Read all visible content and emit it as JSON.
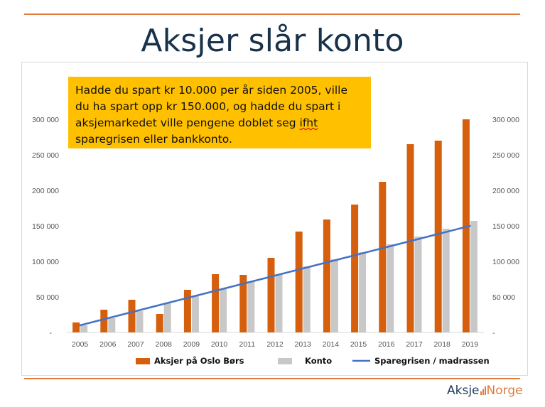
{
  "page": {
    "title": "Aksjer slår konto",
    "callout_parts": [
      "Hadde du spart kr 10.000 per år siden 2005, ville du ha spart opp kr 150.000, og hadde du spart i aksjemarkedet ville pengene doblet seg ",
      "ifht",
      " sparegrisen eller bankkonto."
    ],
    "logo": {
      "left": "Aksje",
      "right": "Norge"
    },
    "colors": {
      "accent": "#e07b3c",
      "title": "#17324a",
      "callout_bg": "#ffc000"
    }
  },
  "chart_data": {
    "type": "bar",
    "categories": [
      "2005",
      "2006",
      "2007",
      "2008",
      "2009",
      "2010",
      "2011",
      "2012",
      "2013",
      "2014",
      "2015",
      "2016",
      "2017",
      "2018",
      "2019"
    ],
    "series": [
      {
        "name": "Aksjer på Oslo Børs",
        "type": "bar",
        "color": "#d55f0c",
        "values": [
          14000,
          32000,
          46000,
          26000,
          60000,
          82000,
          81000,
          105000,
          142000,
          159000,
          180000,
          212000,
          265000,
          270000,
          300000
        ]
      },
      {
        "name": "Konto",
        "type": "bar",
        "color": "#c8c8c8",
        "values": [
          10000,
          20000,
          30000,
          41000,
          51000,
          61000,
          72000,
          82000,
          93000,
          103000,
          113000,
          124000,
          135000,
          146000,
          157000
        ]
      },
      {
        "name": "Sparegrisen / madrassen",
        "type": "line",
        "color": "#4472c4",
        "values": [
          10000,
          20000,
          30000,
          40000,
          50000,
          60000,
          70000,
          80000,
          90000,
          100000,
          110000,
          120000,
          130000,
          140000,
          150000
        ]
      }
    ],
    "y_ticks": [
      "-",
      "50 000",
      "100 000",
      "150 000",
      "200 000",
      "250 000",
      "300 000"
    ],
    "ylim": [
      0,
      300000
    ],
    "legend_position": "bottom"
  }
}
